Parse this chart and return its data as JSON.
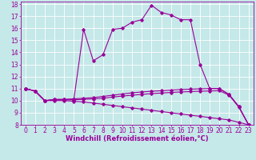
{
  "xlabel": "Windchill (Refroidissement éolien,°C)",
  "bg_color": "#c5e8e8",
  "line_color": "#990099",
  "grid_color": "#ffffff",
  "xlim": [
    -0.5,
    23.5
  ],
  "ylim": [
    8,
    18.2
  ],
  "xticks": [
    0,
    1,
    2,
    3,
    4,
    5,
    6,
    7,
    8,
    9,
    10,
    11,
    12,
    13,
    14,
    15,
    16,
    17,
    18,
    19,
    20,
    21,
    22,
    23
  ],
  "yticks": [
    8,
    9,
    10,
    11,
    12,
    13,
    14,
    15,
    16,
    17,
    18
  ],
  "line1_x": [
    0,
    1,
    2,
    3,
    4,
    5,
    6,
    7,
    8,
    9,
    10,
    11,
    12,
    13,
    14,
    15,
    16,
    17,
    18,
    19,
    20,
    21,
    22,
    23
  ],
  "line1_y": [
    11.0,
    10.8,
    10.0,
    10.1,
    10.1,
    10.1,
    15.9,
    13.3,
    13.8,
    15.9,
    16.0,
    16.5,
    16.7,
    17.9,
    17.3,
    17.1,
    16.7,
    16.7,
    13.0,
    11.0,
    11.0,
    10.5,
    9.5,
    8.0
  ],
  "line2_x": [
    0,
    1,
    2,
    3,
    4,
    5,
    6,
    7,
    8,
    9,
    10,
    11,
    12,
    13,
    14,
    15,
    16,
    17,
    18,
    19,
    20,
    21,
    22,
    23
  ],
  "line2_y": [
    11.0,
    10.8,
    10.0,
    10.1,
    10.1,
    10.15,
    10.2,
    10.25,
    10.35,
    10.45,
    10.55,
    10.65,
    10.72,
    10.78,
    10.82,
    10.88,
    10.92,
    10.95,
    10.98,
    11.0,
    11.0,
    10.5,
    9.5,
    8.0
  ],
  "line3_x": [
    0,
    1,
    2,
    3,
    4,
    5,
    6,
    7,
    8,
    9,
    10,
    11,
    12,
    13,
    14,
    15,
    16,
    17,
    18,
    19,
    20,
    21,
    22,
    23
  ],
  "line3_y": [
    11.0,
    10.8,
    10.0,
    10.0,
    10.0,
    9.95,
    9.9,
    9.8,
    9.7,
    9.6,
    9.5,
    9.4,
    9.3,
    9.2,
    9.1,
    9.0,
    8.9,
    8.8,
    8.7,
    8.6,
    8.5,
    8.4,
    8.2,
    8.0
  ],
  "line4_x": [
    0,
    1,
    2,
    3,
    4,
    5,
    6,
    7,
    8,
    9,
    10,
    11,
    12,
    13,
    14,
    15,
    16,
    17,
    18,
    19,
    20,
    21,
    22,
    23
  ],
  "line4_y": [
    11.0,
    10.8,
    10.0,
    10.05,
    10.05,
    10.08,
    10.1,
    10.15,
    10.2,
    10.3,
    10.38,
    10.45,
    10.52,
    10.58,
    10.63,
    10.68,
    10.72,
    10.75,
    10.78,
    10.8,
    10.82,
    10.45,
    9.45,
    8.0
  ],
  "xlabel_fontsize": 6,
  "tick_fontsize": 5.5,
  "marker": "D",
  "markersize": 1.8,
  "linewidth": 0.8
}
